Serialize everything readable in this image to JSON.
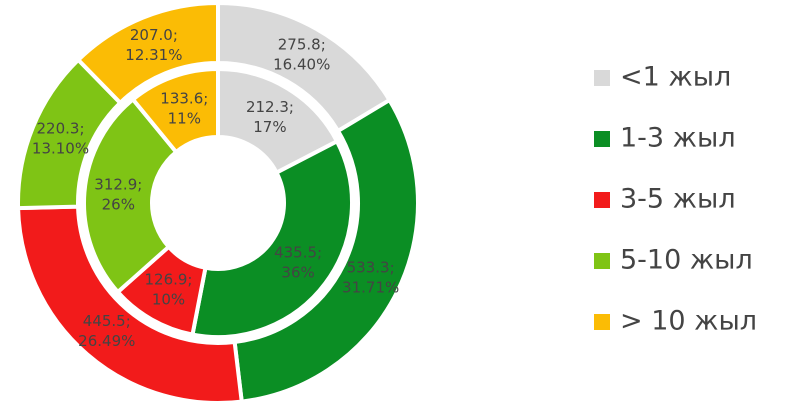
{
  "chart_data": {
    "type": "donut",
    "categories": [
      "<1 жыл",
      "1-3 жыл",
      "3-5 жыл",
      "5-10 жыл",
      "> 10 жыл"
    ],
    "colors": [
      "#d9d9d9",
      "#0b8e24",
      "#f21b1b",
      "#7fc415",
      "#fbbc05"
    ],
    "rings": [
      {
        "values": [
          275.8,
          533.3,
          445.5,
          220.3,
          207.0
        ],
        "value_labels": [
          "275.8;",
          "533.3;",
          "445.5;",
          "220.3;",
          "207.0;"
        ],
        "percents": [
          16.4,
          31.71,
          26.49,
          13.1,
          12.31
        ],
        "percent_labels": [
          "16.40%",
          "31.71%",
          "26.49%",
          "13.10%",
          "12.31%"
        ]
      },
      {
        "values": [
          212.3,
          435.5,
          126.9,
          312.9,
          133.6
        ],
        "value_labels": [
          "212.3;",
          "435.5;",
          "126.9;",
          "312.9;",
          "133.6;"
        ],
        "percents": [
          17,
          36,
          10,
          26,
          11
        ],
        "percent_labels": [
          "17%",
          "36%",
          "10%",
          "26%",
          "11%"
        ]
      }
    ],
    "legend": "right"
  }
}
